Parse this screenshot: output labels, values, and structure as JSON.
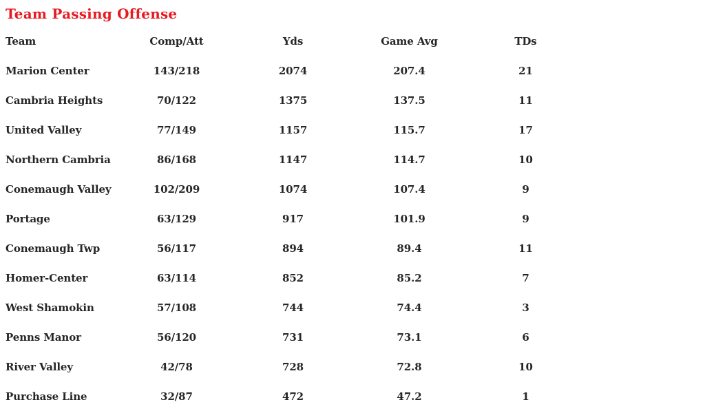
{
  "title": "Team Passing Offense",
  "colors": {
    "title_red": "#e61b22",
    "table_text": "#262626",
    "background": "#ffffff"
  },
  "chart_data": {
    "type": "table",
    "title": "Team Passing Offense",
    "columns": [
      "Team",
      "Comp/Att",
      "Yds",
      "Game Avg",
      "TDs"
    ],
    "rows": [
      [
        "Marion Center",
        "143/218",
        "2074",
        "207.4",
        "21"
      ],
      [
        "Cambria Heights",
        "70/122",
        "1375",
        "137.5",
        "11"
      ],
      [
        "United Valley",
        "77/149",
        "1157",
        "115.7",
        "17"
      ],
      [
        "Northern Cambria",
        "86/168",
        "1147",
        "114.7",
        "10"
      ],
      [
        "Conemaugh Valley",
        "102/209",
        "1074",
        "107.4",
        "9"
      ],
      [
        "Portage",
        "63/129",
        "917",
        "101.9",
        "9"
      ],
      [
        "Conemaugh Twp",
        "56/117",
        "894",
        "89.4",
        "11"
      ],
      [
        "Homer-Center",
        "63/114",
        "852",
        "85.2",
        "7"
      ],
      [
        "West Shamokin",
        "57/108",
        "744",
        "74.4",
        "3"
      ],
      [
        "Penns Manor",
        "56/120",
        "731",
        "73.1",
        "6"
      ],
      [
        "River Valley",
        "42/78",
        "728",
        "72.8",
        "10"
      ],
      [
        "Purchase Line",
        "32/87",
        "472",
        "47.2",
        "1"
      ]
    ],
    "layout": {
      "header_row": true,
      "gridlines": false,
      "team_column_align": "left",
      "stat_columns_align": "center"
    }
  }
}
